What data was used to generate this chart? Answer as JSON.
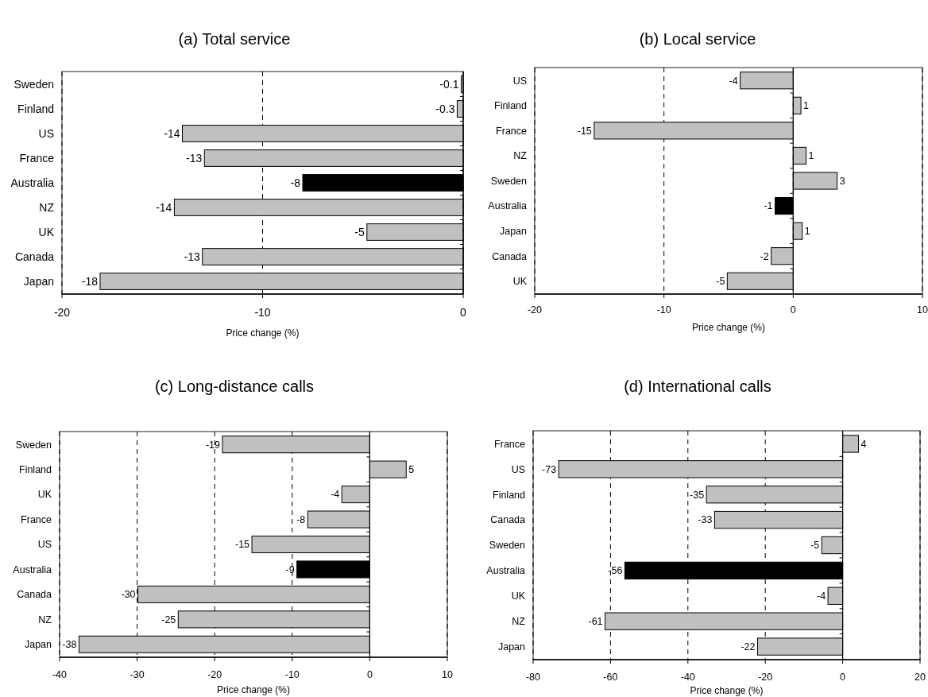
{
  "chart_data": [
    {
      "type": "bar",
      "orientation": "horizontal",
      "title": "(a) Total service",
      "xlabel": "Price change (%)",
      "categories": [
        "Sweden",
        "Finland",
        "US",
        "France",
        "Australia",
        "NZ",
        "UK",
        "Canada",
        "Japan"
      ],
      "values": [
        -0.1,
        -0.3,
        -14.0,
        -12.9,
        -8.0,
        -14.4,
        -4.8,
        -13.0,
        -18.1
      ],
      "colors": [
        "#c0c0c0",
        "#c0c0c0",
        "#c0c0c0",
        "#c0c0c0",
        "#000000",
        "#c0c0c0",
        "#c0c0c0",
        "#c0c0c0",
        "#c0c0c0"
      ],
      "value_labels": [
        "-0.1",
        "-0.3",
        "-14",
        "-13",
        "-8",
        "-14",
        "-5",
        "-13",
        "-18"
      ],
      "xlim": [
        -20,
        0
      ],
      "xticks": [
        -20,
        -10,
        0
      ],
      "grid": "x"
    },
    {
      "type": "bar",
      "orientation": "horizontal",
      "title": "(b) Local service",
      "xlabel": "Price change (%)",
      "categories": [
        "US",
        "Finland",
        "France",
        "NZ",
        "Sweden",
        "Australia",
        "Japan",
        "Canada",
        "UK"
      ],
      "values": [
        -4.1,
        0.6,
        -15.4,
        1.0,
        3.4,
        -1.4,
        0.7,
        -1.7,
        -5.1
      ],
      "colors": [
        "#c0c0c0",
        "#c0c0c0",
        "#c0c0c0",
        "#c0c0c0",
        "#c0c0c0",
        "#000000",
        "#c0c0c0",
        "#c0c0c0",
        "#c0c0c0"
      ],
      "value_labels": [
        "-4",
        "1",
        "-15",
        "1",
        "3",
        "-1",
        "1",
        "-2",
        "-5"
      ],
      "xlim": [
        -20,
        10
      ],
      "xticks": [
        -20,
        -10,
        0,
        10
      ],
      "grid": "x"
    },
    {
      "type": "bar",
      "orientation": "horizontal",
      "title": "(c) Long-distance calls",
      "xlabel": "Price change (%)",
      "categories": [
        "Sweden",
        "Finland",
        "UK",
        "France",
        "US",
        "Australia",
        "Canada",
        "NZ",
        "Japan"
      ],
      "values": [
        -19.0,
        4.7,
        -3.6,
        -8.0,
        -15.2,
        -9.4,
        -29.9,
        -24.7,
        -37.5
      ],
      "colors": [
        "#c0c0c0",
        "#c0c0c0",
        "#c0c0c0",
        "#c0c0c0",
        "#c0c0c0",
        "#000000",
        "#c0c0c0",
        "#c0c0c0",
        "#c0c0c0"
      ],
      "value_labels": [
        "-19",
        "5",
        "-4",
        "-8",
        "-15",
        "-9",
        "-30",
        "-25",
        "-38"
      ],
      "xlim": [
        -40,
        10
      ],
      "xticks": [
        -40,
        -30,
        -20,
        -10,
        0,
        10
      ],
      "grid": "x"
    },
    {
      "type": "bar",
      "orientation": "horizontal",
      "title": "(d) International calls",
      "xlabel": "Price change (%)",
      "categories": [
        "France",
        "US",
        "Finland",
        "Canada",
        "Sweden",
        "Australia",
        "UK",
        "NZ",
        "Japan"
      ],
      "values": [
        4.1,
        -73.4,
        -35.2,
        -33.1,
        -5.4,
        -56.3,
        -3.8,
        -61.4,
        -22.0
      ],
      "colors": [
        "#c0c0c0",
        "#c0c0c0",
        "#c0c0c0",
        "#c0c0c0",
        "#c0c0c0",
        "#000000",
        "#c0c0c0",
        "#c0c0c0",
        "#c0c0c0"
      ],
      "value_labels": [
        "4",
        "-73",
        "-35",
        "-33",
        "-5",
        "-56",
        "-4",
        "-61",
        "-22"
      ],
      "xlim": [
        -80,
        20
      ],
      "xticks": [
        -80,
        -60,
        -40,
        -20,
        0,
        20
      ],
      "grid": "x"
    }
  ]
}
